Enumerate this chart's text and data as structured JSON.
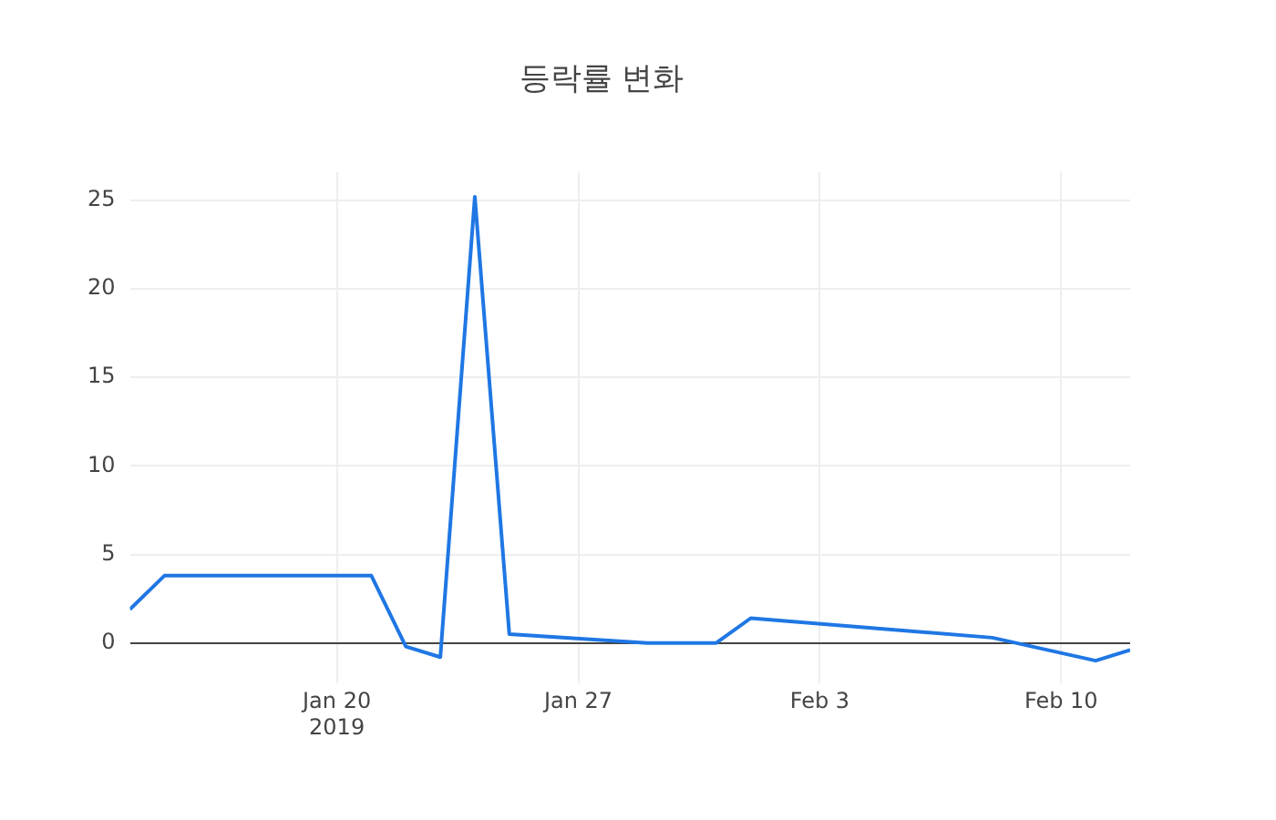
{
  "chart_data": {
    "type": "line",
    "title": "등락률 변화",
    "x": [
      "2019-01-14",
      "2019-01-15",
      "2019-01-21",
      "2019-01-22",
      "2019-01-23",
      "2019-01-24",
      "2019-01-25",
      "2019-01-29",
      "2019-01-31",
      "2019-02-01",
      "2019-02-08",
      "2019-02-11",
      "2019-02-12"
    ],
    "series": [
      {
        "color": "#1f77e4",
        "values": [
          1.9,
          3.8,
          3.8,
          -0.2,
          -0.8,
          25.2,
          0.5,
          0,
          0,
          1.4,
          0.3,
          -1.0,
          -0.4
        ]
      }
    ],
    "xlim": [
      "2019-01-14",
      "2019-02-12"
    ],
    "xticks": [
      {
        "value": "2019-01-20",
        "label": "Jan 20\n2019"
      },
      {
        "value": "2019-01-27",
        "label": "Jan 27"
      },
      {
        "value": "2019-02-03",
        "label": "Feb 3"
      },
      {
        "value": "2019-02-10",
        "label": "Feb 10"
      }
    ],
    "ylim": [
      -2.3,
      26.6
    ],
    "yticks": [
      0,
      5,
      10,
      15,
      20,
      25
    ],
    "grid": true,
    "legend": false,
    "marker": "none",
    "line_style": "solid"
  }
}
